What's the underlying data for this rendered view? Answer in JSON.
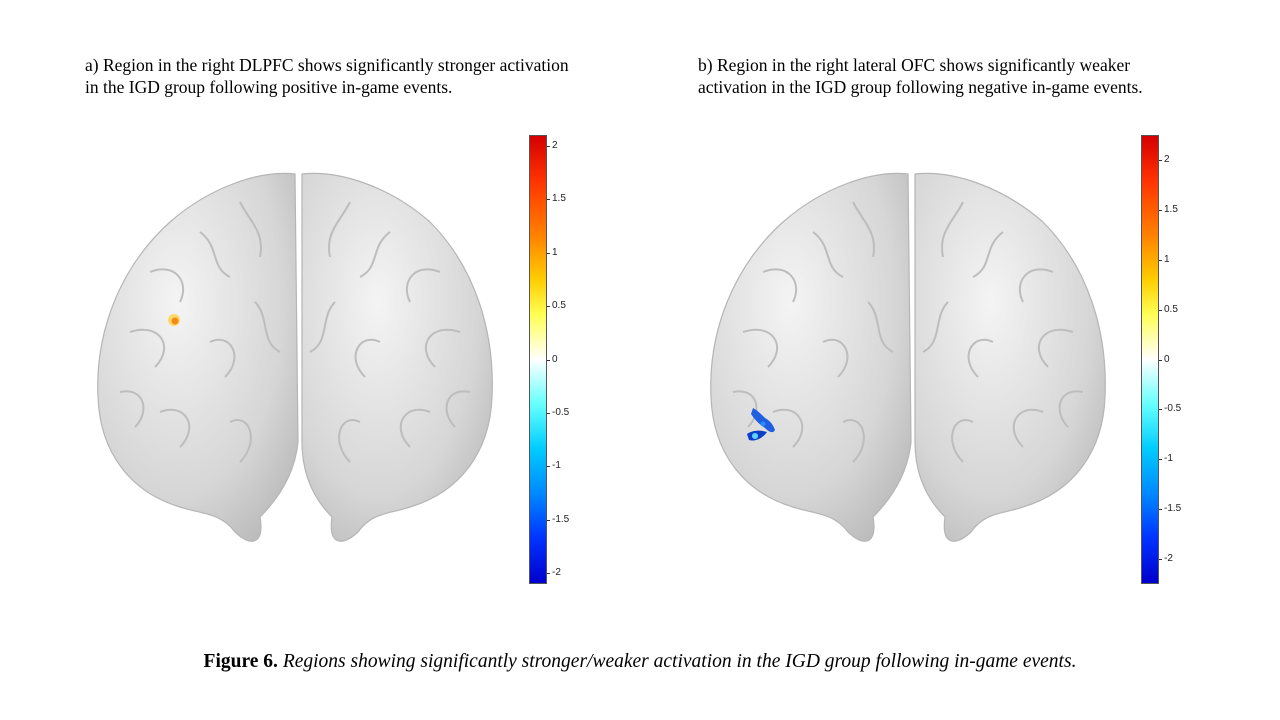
{
  "panel_a": {
    "caption": "a) Region in the right DLPFC shows significantly stronger activation\nin the IGD group following positive in-game events.",
    "colorbar_ticks": [
      2,
      1.5,
      1,
      0.5,
      0,
      -0.5,
      -1,
      -1.5,
      -2
    ],
    "colorbar_range": [
      -2.1,
      2.1
    ],
    "activation_color": "#f5a623"
  },
  "panel_b": {
    "caption": "b) Region in the right lateral OFC shows significantly weaker\nactivation in the IGD group following negative in-game events.",
    "colorbar_ticks": [
      2,
      1.5,
      1,
      0.5,
      0,
      -0.5,
      -1,
      -1.5,
      -2
    ],
    "colorbar_range": [
      -2.25,
      2.25
    ],
    "activation_color": "#1560d8"
  },
  "figure": {
    "label": "Figure 6.",
    "caption": "Regions showing significantly stronger/weaker activation in the IGD group following in-game events."
  }
}
